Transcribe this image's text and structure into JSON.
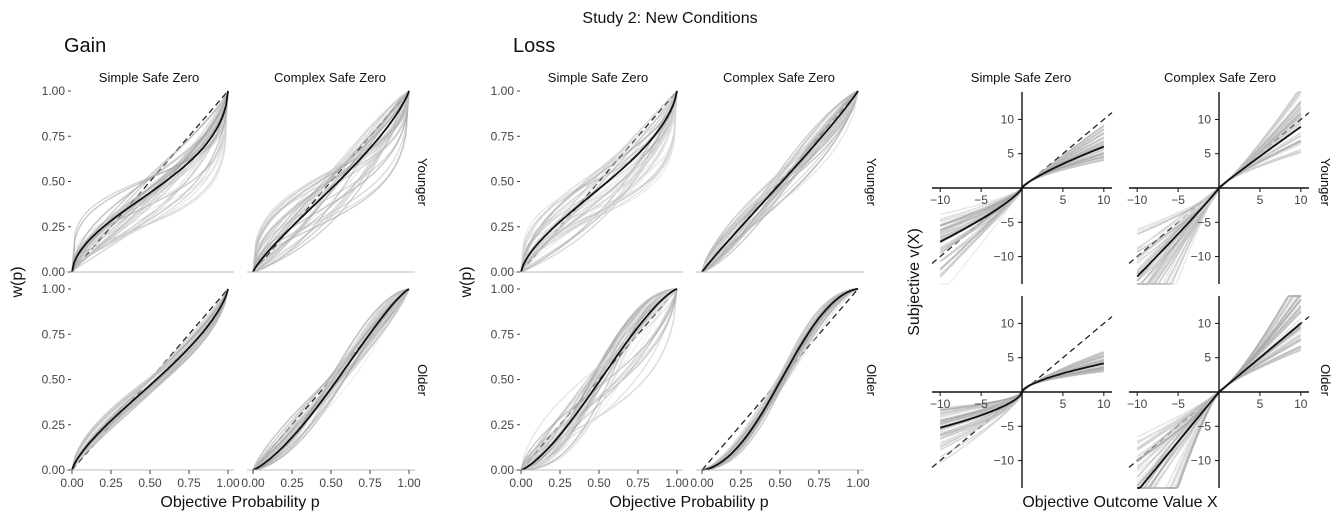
{
  "title": "Study 2: New Conditions",
  "sections": {
    "gain": "Gain",
    "loss": "Loss"
  },
  "columns": [
    "Simple Safe Zero",
    "Complex Safe Zero"
  ],
  "rows": [
    "Younger",
    "Older"
  ],
  "weighting": {
    "ylabel": "w(p)",
    "xlabel": "Objective Probability p",
    "ticks": [
      "0.00",
      "0.25",
      "0.50",
      "0.75",
      "1.00"
    ]
  },
  "value": {
    "ylabel": "Subjective v(X)",
    "xlabel": "Objective Outcome Value X",
    "xticks": [
      "−10",
      "−5",
      "5",
      "10"
    ],
    "yticks": [
      "10",
      "5",
      "−5",
      "−10"
    ]
  },
  "chart_data": [
    {
      "type": "line",
      "name": "gain",
      "x": "p",
      "xlim": [
        0,
        1
      ],
      "ylim": [
        0,
        1
      ],
      "grid": false,
      "panels": [
        {
          "column": "Simple Safe Zero",
          "row": "Younger",
          "gamma": 0.62,
          "delta": 0.78,
          "spread": "wide"
        },
        {
          "column": "Complex Safe Zero",
          "row": "Younger",
          "gamma": 0.85,
          "delta": 0.85,
          "spread": "wide"
        },
        {
          "column": "Simple Safe Zero",
          "row": "Older",
          "gamma": 0.78,
          "delta": 0.88,
          "spread": "narrow"
        },
        {
          "column": "Complex Safe Zero",
          "row": "Older",
          "gamma": 1.2,
          "delta": 0.82,
          "spread": "medium"
        }
      ]
    },
    {
      "type": "line",
      "name": "loss",
      "x": "p",
      "xlim": [
        0,
        1
      ],
      "ylim": [
        0,
        1
      ],
      "grid": false,
      "panels": [
        {
          "column": "Simple Safe Zero",
          "row": "Younger",
          "gamma": 0.72,
          "delta": 0.85,
          "spread": "wide"
        },
        {
          "column": "Complex Safe Zero",
          "row": "Younger",
          "gamma": 0.95,
          "delta": 0.95,
          "spread": "medium"
        },
        {
          "column": "Simple Safe Zero",
          "row": "Older",
          "gamma": 1.25,
          "delta": 0.95,
          "spread": "wide"
        },
        {
          "column": "Complex Safe Zero",
          "row": "Older",
          "gamma": 1.55,
          "delta": 0.95,
          "spread": "narrow"
        }
      ]
    },
    {
      "type": "line",
      "name": "value function",
      "xlim": [
        -11,
        11
      ],
      "ylim": [
        -14,
        14
      ],
      "grid": false,
      "panels": [
        {
          "column": "Simple Safe Zero",
          "row": "Younger",
          "alpha": 0.78,
          "lambda": 1.3
        },
        {
          "column": "Complex Safe Zero",
          "row": "Younger",
          "alpha": 0.95,
          "lambda": 1.45
        },
        {
          "column": "Simple Safe Zero",
          "row": "Older",
          "alpha": 0.62,
          "lambda": 1.25
        },
        {
          "column": "Complex Safe Zero",
          "row": "Older",
          "alpha": 1.0,
          "lambda": 1.45
        }
      ]
    }
  ]
}
